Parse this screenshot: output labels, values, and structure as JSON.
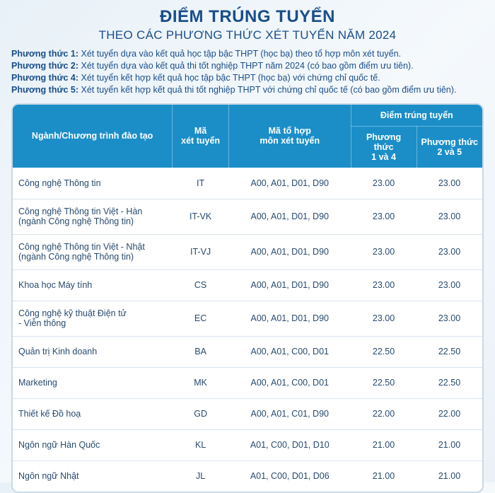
{
  "colors": {
    "primary": "#1a4e8a",
    "header_bg": "#1b8ec8",
    "body_text": "#284a6e",
    "row_border": "#d9e4ee"
  },
  "title": {
    "main": "ĐIỂM TRÚNG TUYỂN",
    "sub": "THEO CÁC PHƯƠNG THỨC XÉT TUYỂN NĂM 2024",
    "main_fontsize": 24,
    "sub_fontsize": 17
  },
  "methods": [
    {
      "label": "Phương thức 1:",
      "text": " Xét tuyển dựa vào kết quả học tập bậc THPT (học bạ) theo tổ hợp môn xét tuyển."
    },
    {
      "label": "Phương thức 2:",
      "text": " Xét tuyển dựa vào kết quả thi tốt nghiệp THPT năm 2024 (có bao gồm điểm ưu tiên)."
    },
    {
      "label": "Phương thức 4:",
      "text": " Xét tuyển kết hợp kết quả học tập bậc THPT (học bạ) với chứng chỉ quốc tế."
    },
    {
      "label": "Phương thức 5:",
      "text": " Xét tuyển kết hợp kết quả thi tốt nghiệp THPT với chứng chỉ quốc tế (có bao gồm điểm ưu tiên)."
    }
  ],
  "method_fontsize": 12.5,
  "table": {
    "header_fontsize": 12.5,
    "body_fontsize": 12.5,
    "col_widths_pct": [
      34,
      12,
      26,
      14,
      14
    ],
    "columns": {
      "program": "Ngành/Chương trình đào tạo",
      "code": "Mã\nxét tuyển",
      "combo": "Mã tổ hợp\nmôn xét tuyển",
      "score_group": "Điểm trúng tuyển",
      "score_a": "Phương thức\n1 và 4",
      "score_b": "Phương thức\n2 và 5"
    },
    "rows": [
      {
        "name": "Công nghệ Thông tin",
        "sub": "",
        "code": "IT",
        "combo": "A00, A01, D01, D90",
        "s1": "23.00",
        "s2": "23.00"
      },
      {
        "name": "Công nghệ Thông tin Việt - Hàn",
        "sub": "(ngành Công nghệ Thông tin)",
        "code": "IT-VK",
        "combo": "A00, A01, D01, D90",
        "s1": "23.00",
        "s2": "23.00"
      },
      {
        "name": "Công nghệ Thông tin Việt - Nhật",
        "sub": "(ngành Công nghệ Thông tin)",
        "code": "IT-VJ",
        "combo": "A00, A01, D01, D90",
        "s1": "23.00",
        "s2": "23.00"
      },
      {
        "name": "Khoa học Máy tính",
        "sub": "",
        "code": "CS",
        "combo": "A00, A01, D01, D90",
        "s1": "23.00",
        "s2": "23.00"
      },
      {
        "name": "Công nghệ kỹ thuật Điện tử\n- Viễn thông",
        "sub": "",
        "code": "EC",
        "combo": "A00, A01, D01, D90",
        "s1": "23.00",
        "s2": "23.00"
      },
      {
        "name": "Quản trị Kinh doanh",
        "sub": "",
        "code": "BA",
        "combo": "A00, A01, C00, D01",
        "s1": "22.50",
        "s2": "22.50"
      },
      {
        "name": "Marketing",
        "sub": "",
        "code": "MK",
        "combo": "A00, A01, C00, D01",
        "s1": "22.50",
        "s2": "22.50"
      },
      {
        "name": "Thiết kế Đồ hoạ",
        "sub": "",
        "code": "GD",
        "combo": "A00, A01, C01, D90",
        "s1": "22.00",
        "s2": "22.00"
      },
      {
        "name": "Ngôn ngữ Hàn Quốc",
        "sub": "",
        "code": "KL",
        "combo": "A01, C00, D01, D10",
        "s1": "21.00",
        "s2": "21.00"
      },
      {
        "name": "Ngôn ngữ Nhật",
        "sub": "",
        "code": "JL",
        "combo": "A01, C00, D01, D06",
        "s1": "21.00",
        "s2": "21.00"
      }
    ]
  }
}
